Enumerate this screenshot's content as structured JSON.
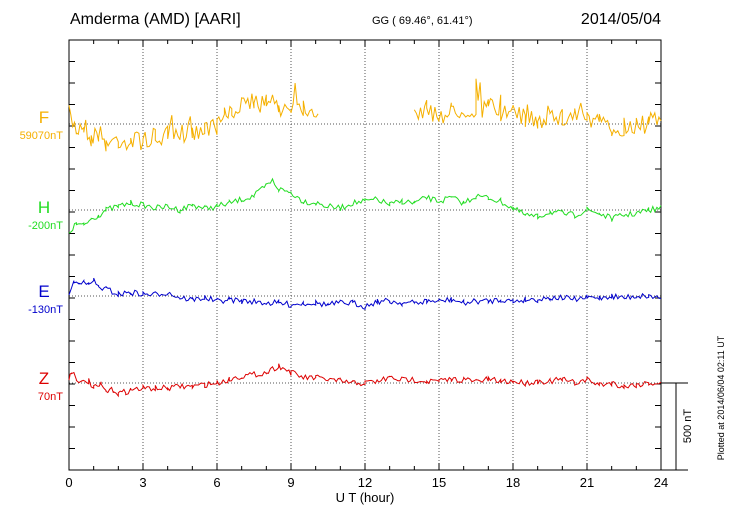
{
  "header": {
    "station": "Amderma (AMD)  [AARI]",
    "coords": "GG ( 69.46°,  61.41°)",
    "date": "2014/05/04"
  },
  "side_note": "Plotted at 2014/06/04 02:11  UT",
  "scale_label": "500 nT",
  "colors": {
    "F": "#f5b000",
    "H": "#22dd22",
    "E": "#0000cc",
    "Z": "#dd0000"
  },
  "chart_data": {
    "type": "line",
    "title": "Amderma (AMD)  [AARI]",
    "xlabel": "U T (hour)",
    "ylabel": "",
    "xlim": [
      0,
      24
    ],
    "xticks": [
      0,
      3,
      6,
      9,
      12,
      15,
      18,
      21,
      24
    ],
    "grid": true,
    "scale_bar_nT": 500,
    "series": [
      {
        "name": "F",
        "baseline_label": "59070nT",
        "baseline": 59070,
        "gaps": [
          [
            10.1,
            14.0
          ]
        ],
        "x": [
          0,
          0.3,
          0.6,
          0.9,
          1.2,
          1.5,
          2,
          2.5,
          3,
          3.5,
          4,
          4.5,
          5,
          5.5,
          6,
          6.3,
          6.6,
          7,
          7.5,
          8,
          8.5,
          9,
          9.5,
          10.1,
          14,
          14.5,
          15,
          15.5,
          16,
          16.5,
          17,
          17.5,
          18,
          18.5,
          19,
          19.5,
          20,
          20.5,
          21,
          21.5,
          22,
          22.5,
          23,
          23.5,
          24
        ],
        "y": [
          59120,
          59040,
          59070,
          58990,
          59020,
          58960,
          58980,
          58970,
          58980,
          58990,
          59000,
          59010,
          59020,
          59040,
          59060,
          59110,
          59150,
          59170,
          59180,
          59190,
          59170,
          59160,
          59170,
          59150,
          59140,
          59150,
          59120,
          59140,
          59160,
          59150,
          59170,
          59140,
          59130,
          59100,
          59080,
          59110,
          59100,
          59130,
          59100,
          59080,
          59030,
          59060,
          59050,
          59080,
          59080
        ]
      },
      {
        "name": "H",
        "baseline_label": "-200nT",
        "baseline": -200,
        "x": [
          0,
          0.3,
          0.6,
          0.9,
          1.2,
          1.5,
          2,
          2.5,
          3,
          3.5,
          4,
          4.5,
          5,
          5.5,
          6,
          6.5,
          7,
          7.5,
          8,
          8.25,
          8.5,
          9,
          9.5,
          10,
          10.5,
          11,
          11.5,
          12,
          12.5,
          13,
          13.5,
          14,
          14.5,
          15,
          15.5,
          16,
          16.5,
          17,
          17.5,
          18,
          18.5,
          19,
          19.5,
          20,
          20.5,
          21,
          21.5,
          22,
          22.5,
          23,
          23.5,
          24
        ],
        "y": [
          -330,
          -280,
          -290,
          -250,
          -230,
          -200,
          -180,
          -160,
          -170,
          -190,
          -180,
          -200,
          -170,
          -190,
          -180,
          -160,
          -140,
          -120,
          -60,
          -30,
          -80,
          -100,
          -150,
          -160,
          -180,
          -190,
          -160,
          -150,
          -140,
          -170,
          -150,
          -160,
          -130,
          -150,
          -130,
          -160,
          -120,
          -130,
          -150,
          -190,
          -230,
          -240,
          -210,
          -220,
          -230,
          -200,
          -220,
          -250,
          -230,
          -220,
          -200,
          -190
        ]
      },
      {
        "name": "E",
        "baseline_label": "-130nT",
        "baseline": -130,
        "x": [
          0,
          0.2,
          0.4,
          0.6,
          0.8,
          1.0,
          1.2,
          1.5,
          2,
          2.5,
          3,
          3.5,
          4,
          4.5,
          5,
          5.5,
          6,
          6.5,
          7,
          7.5,
          8,
          8.5,
          9,
          9.5,
          10,
          10.5,
          11,
          11.5,
          12,
          12.5,
          13,
          13.5,
          14,
          14.5,
          15,
          15.5,
          16,
          16.5,
          17,
          17.5,
          18,
          18.5,
          19,
          19.5,
          20,
          20.5,
          21,
          21.5,
          22,
          22.5,
          23,
          23.5,
          24
        ],
        "y": [
          -110,
          -50,
          -60,
          -30,
          -70,
          -40,
          -80,
          -90,
          -120,
          -110,
          -120,
          -120,
          -110,
          -140,
          -150,
          -140,
          -160,
          -150,
          -160,
          -160,
          -170,
          -170,
          -180,
          -170,
          -170,
          -180,
          -170,
          -170,
          -190,
          -160,
          -160,
          -170,
          -170,
          -160,
          -160,
          -150,
          -170,
          -160,
          -160,
          -150,
          -160,
          -150,
          -150,
          -140,
          -140,
          -150,
          -140,
          -140,
          -130,
          -140,
          -130,
          -130,
          -140
        ]
      },
      {
        "name": "Z",
        "baseline_label": "70nT",
        "baseline": 70,
        "x": [
          0,
          0.1,
          0.3,
          0.5,
          0.8,
          1.0,
          1.3,
          1.5,
          1.8,
          2.0,
          2.3,
          2.5,
          3,
          3.5,
          4,
          4.5,
          5,
          5.5,
          6,
          6.5,
          7,
          7.5,
          8,
          8.5,
          9,
          9.5,
          10,
          10.5,
          11,
          11.5,
          12,
          12.5,
          13,
          13.5,
          14,
          14.5,
          15,
          15.5,
          16,
          16.5,
          17,
          17.5,
          18,
          18.5,
          19,
          19.5,
          20,
          20.5,
          21,
          21.5,
          22,
          22.5,
          23,
          23.5,
          24
        ],
        "y": [
          90,
          140,
          100,
          70,
          80,
          40,
          60,
          20,
          30,
          10,
          20,
          30,
          40,
          40,
          40,
          50,
          50,
          60,
          70,
          90,
          110,
          120,
          130,
          170,
          130,
          100,
          100,
          90,
          80,
          70,
          70,
          80,
          100,
          90,
          90,
          80,
          80,
          90,
          90,
          80,
          90,
          80,
          80,
          70,
          80,
          80,
          90,
          70,
          90,
          60,
          70,
          50,
          60,
          70,
          70
        ]
      }
    ]
  }
}
